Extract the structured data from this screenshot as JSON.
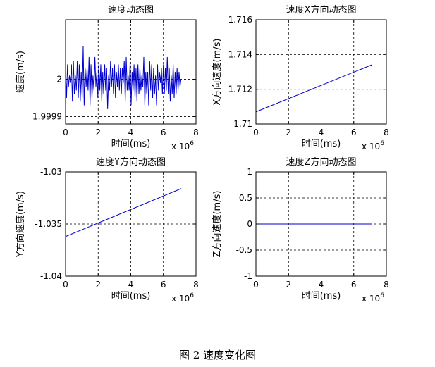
{
  "figure": {
    "caption": "图 2  速度变化图"
  },
  "chart_data": [
    {
      "type": "line",
      "title": "速度动态图",
      "xlabel": "时间(ms)",
      "ylabel": "速度(m/s)",
      "x_multiplier_label": "x 10",
      "x_multiplier_exp": "6",
      "xlim": [
        0,
        8
      ],
      "ylim": [
        1.99988,
        2.00016
      ],
      "xticks": [
        0,
        2,
        4,
        6,
        8
      ],
      "xtick_labels": [
        "0",
        "2",
        "4",
        "6",
        "8"
      ],
      "yticks": [
        1.9999,
        2.0
      ],
      "ytick_labels": [
        "1.9999",
        "2"
      ],
      "grid": true,
      "series": [
        {
          "color": "#0000cc",
          "x": [
            0.0,
            0.06,
            0.12,
            0.18,
            0.24,
            0.3,
            0.36,
            0.42,
            0.48,
            0.54,
            0.6,
            0.66,
            0.72,
            0.78,
            0.84,
            0.9,
            0.96,
            1.02,
            1.08,
            1.14,
            1.2,
            1.26,
            1.32,
            1.38,
            1.44,
            1.5,
            1.56,
            1.62,
            1.68,
            1.74,
            1.8,
            1.86,
            1.92,
            1.98,
            2.04,
            2.1,
            2.16,
            2.22,
            2.28,
            2.34,
            2.4,
            2.46,
            2.52,
            2.58,
            2.64,
            2.7,
            2.76,
            2.82,
            2.88,
            2.94,
            3.0,
            3.06,
            3.12,
            3.18,
            3.24,
            3.3,
            3.36,
            3.42,
            3.48,
            3.54,
            3.6,
            3.66,
            3.72,
            3.78,
            3.84,
            3.9,
            3.96,
            4.02,
            4.08,
            4.14,
            4.2,
            4.26,
            4.32,
            4.38,
            4.44,
            4.5,
            4.56,
            4.62,
            4.68,
            4.74,
            4.8,
            4.86,
            4.92,
            4.98,
            5.04,
            5.1,
            5.16,
            5.22,
            5.28,
            5.34,
            5.4,
            5.46,
            5.52,
            5.58,
            5.64,
            5.7,
            5.76,
            5.82,
            5.88,
            5.94,
            6.0,
            6.06,
            6.12,
            6.18,
            6.24,
            6.3,
            6.36,
            6.42,
            6.48,
            6.54,
            6.6,
            6.66,
            6.72,
            6.78,
            6.84,
            6.9,
            6.96,
            7.02,
            7.08
          ],
          "y": [
            2.00003,
            1.99995,
            2.00004,
            1.99998,
            2.00001,
            1.99999,
            2.00004,
            1.99994,
            2.00005,
            1.99996,
            2.00001,
            1.99997,
            2.00005,
            1.99995,
            2.00004,
            1.99994,
            2.00002,
            1.99995,
            2.00009,
            1.99993,
            2.00003,
            1.99998,
            2.00003,
            1.99997,
            2.00006,
            1.99993,
            2.00004,
            1.99995,
            2.00001,
            1.99997,
            2.00006,
            1.99998,
            2.00002,
            1.99995,
            2.00004,
            1.99997,
            2.00004,
            1.99994,
            2.00002,
            1.99996,
            2.00004,
            1.99997,
            2.00003,
            1.99992,
            2.00001,
            1.99997,
            2.00005,
            1.99998,
            2.00003,
            1.99996,
            2.00004,
            1.99995,
            2.00002,
            1.99998,
            2.00004,
            1.99997,
            2.00003,
            1.99996,
            2.00003,
            1.99999,
            2.00005,
            1.99994,
            2.00006,
            1.99997,
            2.00001,
            1.99997,
            2.00005,
            1.99993,
            2.00002,
            1.99997,
            2.00004,
            1.99995,
            2.00003,
            1.99994,
            2.00004,
            1.99996,
            2.00003,
            1.99997,
            2.00001,
            1.99998,
            2.00006,
            1.99993,
            2.00002,
            1.99996,
            2.00002,
            1.99993,
            2.00005,
            1.99997,
            2.00004,
            1.99995,
            2.00003,
            1.99996,
            2.00001,
            1.99993,
            2.00004,
            1.99997,
            2.00002,
            1.99999,
            2.00003,
            1.99996,
            2.00004,
            1.99996,
            2.00003,
            1.99997,
            2.00006,
            1.99996,
            2.00003,
            1.99994,
            2.00001,
            1.99996,
            2.00004,
            1.99995,
            2.00002,
            1.99996,
            2.00003,
            1.99997,
            2.00002,
            1.99998,
            2.0
          ]
        }
      ]
    },
    {
      "type": "line",
      "title": "速度X方向动态图",
      "xlabel": "时间(ms)",
      "ylabel": "X方向速度(m/s)",
      "x_multiplier_label": "x 10",
      "x_multiplier_exp": "6",
      "xlim": [
        0,
        8
      ],
      "ylim": [
        1.71,
        1.716
      ],
      "xticks": [
        0,
        2,
        4,
        6,
        8
      ],
      "xtick_labels": [
        "0",
        "2",
        "4",
        "6",
        "8"
      ],
      "yticks": [
        1.71,
        1.712,
        1.714,
        1.716
      ],
      "ytick_labels": [
        "1.71",
        "1.712",
        "1.714",
        "1.716"
      ],
      "grid": true,
      "series": [
        {
          "color": "#0000cc",
          "x": [
            0,
            7.1
          ],
          "y": [
            1.7107,
            1.7134
          ]
        }
      ]
    },
    {
      "type": "line",
      "title": "速度Y方向动态图",
      "xlabel": "时间(ms)",
      "ylabel": "Y方向速度(m/s)",
      "x_multiplier_label": "x 10",
      "x_multiplier_exp": "6",
      "xlim": [
        0,
        8
      ],
      "ylim": [
        -1.04,
        -1.03
      ],
      "xticks": [
        0,
        2,
        4,
        6,
        8
      ],
      "xtick_labels": [
        "0",
        "2",
        "4",
        "6",
        "8"
      ],
      "yticks": [
        -1.04,
        -1.035,
        -1.03
      ],
      "ytick_labels": [
        "-1.04",
        "-1.035",
        "-1.03"
      ],
      "grid": true,
      "series": [
        {
          "color": "#0000cc",
          "x": [
            0,
            7.1
          ],
          "y": [
            -1.0362,
            -1.0316
          ]
        }
      ]
    },
    {
      "type": "line",
      "title": "速度Z方向动态图",
      "xlabel": "时间(ms)",
      "ylabel": "Z方向速度(m/s)",
      "x_multiplier_label": "x 10",
      "x_multiplier_exp": "6",
      "xlim": [
        0,
        8
      ],
      "ylim": [
        -1,
        1
      ],
      "xticks": [
        0,
        2,
        4,
        6,
        8
      ],
      "xtick_labels": [
        "0",
        "2",
        "4",
        "6",
        "8"
      ],
      "yticks": [
        -1,
        -0.5,
        0,
        0.5,
        1
      ],
      "ytick_labels": [
        "-1",
        "-0.5",
        "0",
        "0.5",
        "1"
      ],
      "grid": true,
      "series": [
        {
          "color": "#0000cc",
          "x": [
            0,
            7.1
          ],
          "y": [
            0,
            0
          ]
        }
      ]
    }
  ]
}
